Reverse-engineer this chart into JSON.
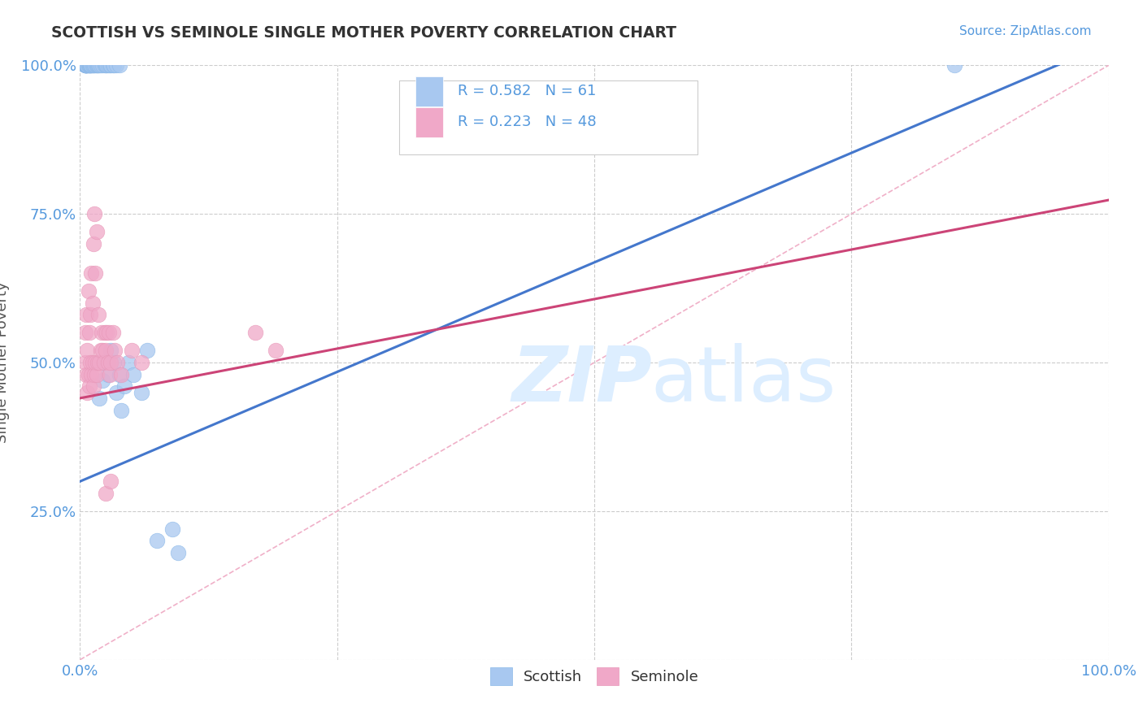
{
  "title": "SCOTTISH VS SEMINOLE SINGLE MOTHER POVERTY CORRELATION CHART",
  "source": "Source: ZipAtlas.com",
  "ylabel": "Single Mother Poverty",
  "xlim": [
    0.0,
    1.0
  ],
  "ylim": [
    0.0,
    1.0
  ],
  "xticks": [
    0.0,
    0.25,
    0.5,
    0.75,
    1.0
  ],
  "yticks": [
    0.0,
    0.25,
    0.5,
    0.75,
    1.0
  ],
  "xticklabels": [
    "0.0%",
    "",
    "",
    "",
    "100.0%"
  ],
  "yticklabels": [
    "",
    "25.0%",
    "50.0%",
    "75.0%",
    "100.0%"
  ],
  "grid_color": "#cccccc",
  "background_color": "#ffffff",
  "scatter_blue_color": "#a8c8f0",
  "scatter_pink_color": "#f0a8c8",
  "line_blue_color": "#4477cc",
  "line_pink_color": "#cc4477",
  "diag_color": "#cccccc",
  "legend_blue_label": "Scottish",
  "legend_pink_label": "Seminole",
  "R_blue": "0.582",
  "N_blue": "61",
  "R_pink": "0.223",
  "N_pink": "48",
  "tick_color": "#5599dd",
  "watermark_color": "#ddeeff",
  "scottish_x": [
    0.005,
    0.005,
    0.005,
    0.005,
    0.005,
    0.005,
    0.006,
    0.006,
    0.006,
    0.007,
    0.007,
    0.007,
    0.008,
    0.008,
    0.009,
    0.009,
    0.009,
    0.01,
    0.01,
    0.011,
    0.011,
    0.012,
    0.012,
    0.013,
    0.014,
    0.015,
    0.016,
    0.016,
    0.017,
    0.018,
    0.019,
    0.02,
    0.022,
    0.024,
    0.025,
    0.026,
    0.027,
    0.029,
    0.03,
    0.032,
    0.033,
    0.035,
    0.038,
    0.019,
    0.022,
    0.024,
    0.027,
    0.03,
    0.033,
    0.035,
    0.038,
    0.04,
    0.043,
    0.047,
    0.052,
    0.06,
    0.065,
    0.075,
    0.09,
    0.095,
    0.85
  ],
  "scottish_y": [
    1.0,
    1.0,
    1.0,
    1.0,
    1.0,
    1.0,
    1.0,
    1.0,
    1.0,
    1.0,
    1.0,
    1.0,
    1.0,
    1.0,
    1.0,
    1.0,
    1.0,
    1.0,
    1.0,
    1.0,
    1.0,
    1.0,
    1.0,
    1.0,
    1.0,
    1.0,
    1.0,
    1.0,
    1.0,
    1.0,
    1.0,
    1.0,
    1.0,
    1.0,
    1.0,
    1.0,
    1.0,
    1.0,
    1.0,
    1.0,
    1.0,
    1.0,
    1.0,
    0.44,
    0.47,
    0.5,
    0.48,
    0.52,
    0.5,
    0.45,
    0.48,
    0.42,
    0.46,
    0.5,
    0.48,
    0.45,
    0.52,
    0.2,
    0.22,
    0.18,
    1.0
  ],
  "seminole_x": [
    0.005,
    0.005,
    0.006,
    0.006,
    0.007,
    0.007,
    0.008,
    0.008,
    0.009,
    0.009,
    0.01,
    0.01,
    0.011,
    0.011,
    0.012,
    0.012,
    0.013,
    0.013,
    0.014,
    0.014,
    0.015,
    0.015,
    0.016,
    0.016,
    0.017,
    0.018,
    0.019,
    0.02,
    0.021,
    0.022,
    0.023,
    0.024,
    0.025,
    0.026,
    0.027,
    0.028,
    0.029,
    0.03,
    0.032,
    0.034,
    0.036,
    0.04,
    0.05,
    0.06,
    0.17,
    0.19,
    0.025,
    0.03
  ],
  "seminole_y": [
    0.5,
    0.55,
    0.48,
    0.58,
    0.45,
    0.52,
    0.48,
    0.62,
    0.46,
    0.55,
    0.5,
    0.58,
    0.48,
    0.65,
    0.5,
    0.6,
    0.46,
    0.7,
    0.48,
    0.75,
    0.5,
    0.65,
    0.48,
    0.72,
    0.5,
    0.58,
    0.5,
    0.52,
    0.55,
    0.52,
    0.5,
    0.55,
    0.52,
    0.55,
    0.5,
    0.55,
    0.48,
    0.5,
    0.55,
    0.52,
    0.5,
    0.48,
    0.52,
    0.5,
    0.55,
    0.52,
    0.28,
    0.3
  ],
  "blue_line_x0": 0.0,
  "blue_line_y0": 0.3,
  "blue_line_x1": 0.38,
  "blue_line_y1": 0.58,
  "pink_line_x0": 0.0,
  "pink_line_y0": 0.44,
  "pink_line_x1": 0.3,
  "pink_line_y1": 0.54
}
